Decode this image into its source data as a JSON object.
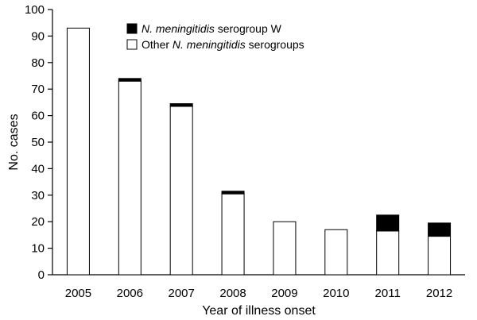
{
  "chart_data": {
    "type": "bar",
    "stacked": true,
    "categories": [
      "2005",
      "2006",
      "2007",
      "2008",
      "2009",
      "2010",
      "2011",
      "2012"
    ],
    "series": [
      {
        "name": "Other N. meningitidis serogroups",
        "name_parts": [
          "Other ",
          "N. meningitidis",
          " serogroups"
        ],
        "color": "#ffffff",
        "values": [
          93,
          73,
          63.5,
          30.5,
          20,
          17,
          16.5,
          14.5
        ]
      },
      {
        "name": "N. meningitidis serogroup W",
        "name_parts": [
          "",
          "N. meningitidis",
          " serogroup W"
        ],
        "color": "#000000",
        "values": [
          0,
          1,
          1,
          1,
          0,
          0,
          6,
          5
        ]
      }
    ],
    "xlabel": "Year of illness onset",
    "ylabel": "No. cases",
    "ylim": [
      0,
      100
    ],
    "yticks": [
      0,
      10,
      20,
      30,
      40,
      50,
      60,
      70,
      80,
      90,
      100
    ],
    "legend_position": "top-left",
    "grid": false
  }
}
